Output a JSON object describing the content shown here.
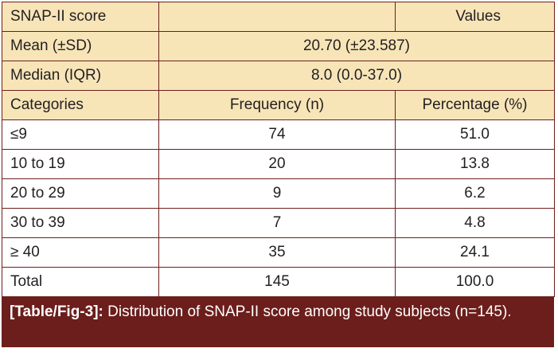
{
  "table": {
    "header": {
      "col1": "SNAP-II score",
      "col3": "Values"
    },
    "summary": [
      {
        "label": "Mean (±SD)",
        "value": "20.70 (±23.587)"
      },
      {
        "label": "Median (IQR)",
        "value": "8.0 (0.0-37.0)"
      }
    ],
    "columns": [
      "Categories",
      "Frequency (n)",
      "Percentage (%)"
    ],
    "rows": [
      {
        "category": "≤9",
        "frequency": "74",
        "percentage": "51.0"
      },
      {
        "category": "10 to 19",
        "frequency": "20",
        "percentage": "13.8"
      },
      {
        "category": "20 to 29",
        "frequency": "9",
        "percentage": "6.2"
      },
      {
        "category": "30 to 39",
        "frequency": "7",
        "percentage": "4.8"
      },
      {
        "category": "≥ 40",
        "frequency": "35",
        "percentage": "24.1"
      },
      {
        "category": "Total",
        "frequency": "145",
        "percentage": "100.0"
      }
    ]
  },
  "caption": {
    "label": "[Table/Fig-3]:",
    "text": " Distribution of SNAP-II score among study subjects (n=145)."
  },
  "colors": {
    "header_bg": "#f7e5b8",
    "border": "#6d1f1c",
    "caption_bg": "#6b1e1b"
  }
}
